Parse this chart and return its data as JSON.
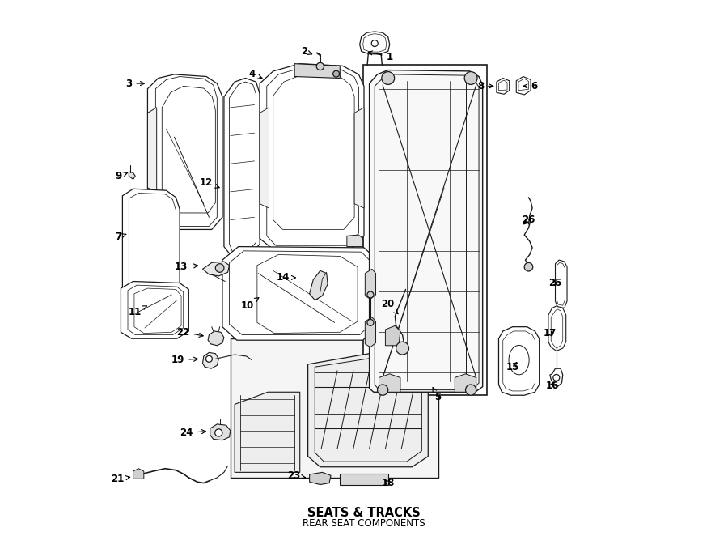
{
  "title": "SEATS & TRACKS",
  "subtitle": "REAR SEAT COMPONENTS",
  "bg": "#ffffff",
  "lc": "#1a1a1a",
  "fig_w": 9.0,
  "fig_h": 6.62,
  "dpi": 100,
  "labels": {
    "1": [
      0.548,
      0.895,
      0.502,
      0.905
    ],
    "2": [
      0.388,
      0.905,
      0.408,
      0.898
    ],
    "3": [
      0.06,
      0.845,
      0.095,
      0.845
    ],
    "4": [
      0.29,
      0.862,
      0.315,
      0.853
    ],
    "5": [
      0.638,
      0.258,
      0.628,
      0.278
    ],
    "6": [
      0.818,
      0.84,
      0.792,
      0.84
    ],
    "7": [
      0.04,
      0.558,
      0.06,
      0.565
    ],
    "8": [
      0.718,
      0.84,
      0.748,
      0.84
    ],
    "9": [
      0.04,
      0.672,
      0.063,
      0.68
    ],
    "10": [
      0.282,
      0.43,
      0.308,
      0.448
    ],
    "11": [
      0.072,
      0.418,
      0.095,
      0.43
    ],
    "12": [
      0.205,
      0.66,
      0.235,
      0.648
    ],
    "13": [
      0.158,
      0.502,
      0.195,
      0.505
    ],
    "14": [
      0.348,
      0.482,
      0.378,
      0.482
    ],
    "15": [
      0.778,
      0.315,
      0.79,
      0.328
    ],
    "16": [
      0.852,
      0.28,
      0.858,
      0.292
    ],
    "17": [
      0.848,
      0.378,
      0.855,
      0.368
    ],
    "18": [
      0.545,
      0.098,
      0.535,
      0.108
    ],
    "19": [
      0.152,
      0.328,
      0.195,
      0.33
    ],
    "20": [
      0.545,
      0.432,
      0.568,
      0.41
    ],
    "21": [
      0.038,
      0.105,
      0.068,
      0.11
    ],
    "22": [
      0.162,
      0.38,
      0.205,
      0.372
    ],
    "23": [
      0.368,
      0.112,
      0.392,
      0.108
    ],
    "24": [
      0.168,
      0.192,
      0.21,
      0.195
    ],
    "25": [
      0.858,
      0.472,
      0.868,
      0.472
    ],
    "26": [
      0.808,
      0.59,
      0.795,
      0.578
    ]
  }
}
